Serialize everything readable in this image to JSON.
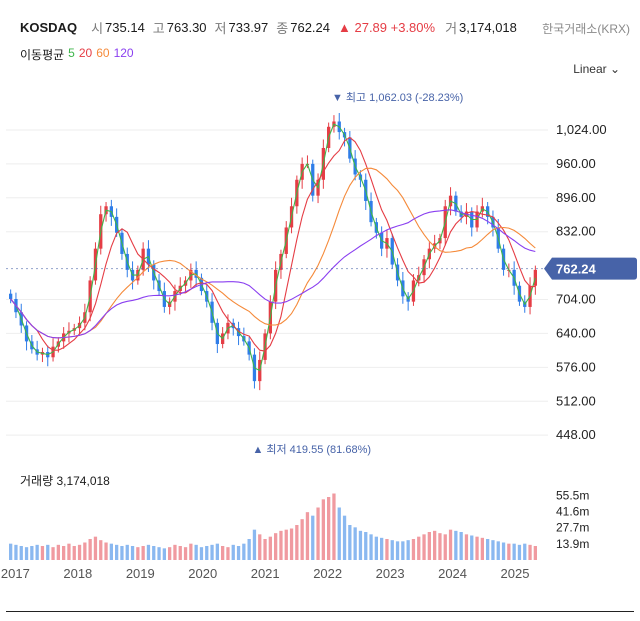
{
  "header": {
    "ticker": "KOSDAQ",
    "open_label": "시",
    "open": "735.14",
    "high_label": "고",
    "high": "763.30",
    "low_label": "저",
    "low": "733.97",
    "close_label": "종",
    "close": "762.24",
    "change": "▲ 27.89 +3.80%",
    "volume_label": "거",
    "volume": "3,174,018",
    "exchange": "한국거래소(KRX)"
  },
  "ma": {
    "label": "이동평균",
    "periods": [
      {
        "value": "5",
        "color": "#3db54a"
      },
      {
        "value": "20",
        "color": "#e53d45"
      },
      {
        "value": "60",
        "color": "#f58a3a"
      },
      {
        "value": "120",
        "color": "#8a3ff0"
      }
    ]
  },
  "scale_label": "Linear ⌄",
  "volume_title": "거래량 3,174,018",
  "chart_data": {
    "type": "candlestick",
    "price_axis": {
      "ticks": [
        "1,024.00",
        "960.00",
        "896.00",
        "832.00",
        "704.00",
        "640.00",
        "576.00",
        "512.00",
        "448.00"
      ],
      "ylim": [
        420,
        1090
      ]
    },
    "current_price": "762.24",
    "max_annotation": "▼ 최고  1,062.03 (-28.23%)",
    "min_annotation": "▲ 최저  419.55 (81.68%)",
    "x_ticks": [
      "2017",
      "2018",
      "2019",
      "2020",
      "2021",
      "2022",
      "2023",
      "2024",
      "2025"
    ],
    "volume_axis": {
      "ticks": [
        "55.5m",
        "41.6m",
        "27.7m",
        "13.9m"
      ]
    },
    "colors": {
      "up": "#e53d45",
      "down": "#2f7de8",
      "up_vol": "#f09aa0",
      "down_vol": "#8ab8f0",
      "ma5": "#3db54a",
      "ma20": "#e53d45",
      "ma60": "#f58a3a",
      "ma120": "#8a3ff0",
      "badge": "#4763a8"
    },
    "x_start": 2016.85,
    "x_end": 2025.4,
    "closes": [
      705,
      680,
      655,
      625,
      610,
      600,
      605,
      595,
      615,
      625,
      640,
      645,
      650,
      660,
      680,
      740,
      800,
      865,
      880,
      860,
      830,
      790,
      760,
      740,
      760,
      800,
      770,
      740,
      720,
      690,
      700,
      720,
      730,
      740,
      760,
      745,
      720,
      700,
      660,
      620,
      640,
      660,
      650,
      635,
      625,
      600,
      550,
      590,
      640,
      700,
      760,
      790,
      840,
      880,
      930,
      960,
      960,
      900,
      930,
      990,
      1030,
      1040,
      1020,
      1010,
      970,
      940,
      930,
      890,
      850,
      830,
      800,
      820,
      770,
      740,
      710,
      700,
      740,
      750,
      780,
      800,
      810,
      820,
      880,
      900,
      870,
      860,
      870,
      840,
      870,
      880,
      860,
      840,
      800,
      760,
      760,
      730,
      700,
      690,
      730,
      760
    ],
    "volumes": [
      14,
      13,
      12,
      11,
      12,
      13,
      12,
      13,
      11,
      13,
      12,
      14,
      12,
      13,
      15,
      18,
      20,
      17,
      15,
      14,
      13,
      12,
      13,
      12,
      11,
      12,
      13,
      12,
      11,
      10,
      11,
      13,
      12,
      11,
      14,
      13,
      11,
      12,
      13,
      14,
      12,
      11,
      13,
      12,
      14,
      18,
      26,
      22,
      18,
      20,
      23,
      25,
      26,
      27,
      30,
      35,
      41,
      38,
      45,
      52,
      54,
      57,
      45,
      38,
      30,
      28,
      25,
      24,
      22,
      20,
      19,
      18,
      17,
      16,
      16,
      17,
      18,
      20,
      22,
      24,
      25,
      23,
      22,
      26,
      25,
      24,
      22,
      21,
      20,
      19,
      18,
      17,
      16,
      15,
      14,
      14,
      13,
      14,
      13,
      12
    ]
  }
}
